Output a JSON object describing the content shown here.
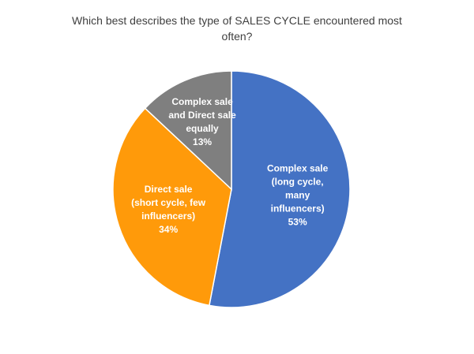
{
  "chart_data": {
    "type": "pie",
    "title": "Which best describes the type of SALES CYCLE encountered most often?",
    "categories": [
      "Complex sale (long cycle, many influencers)",
      "Direct sale (short cycle, few influencers)",
      "Complex sale and Direct sale equally"
    ],
    "values": [
      53,
      34,
      13
    ],
    "value_labels": [
      "53%",
      "34%",
      "13%"
    ],
    "colors": [
      "#4472c4",
      "#ff9a0a",
      "#7f7f7f"
    ]
  }
}
